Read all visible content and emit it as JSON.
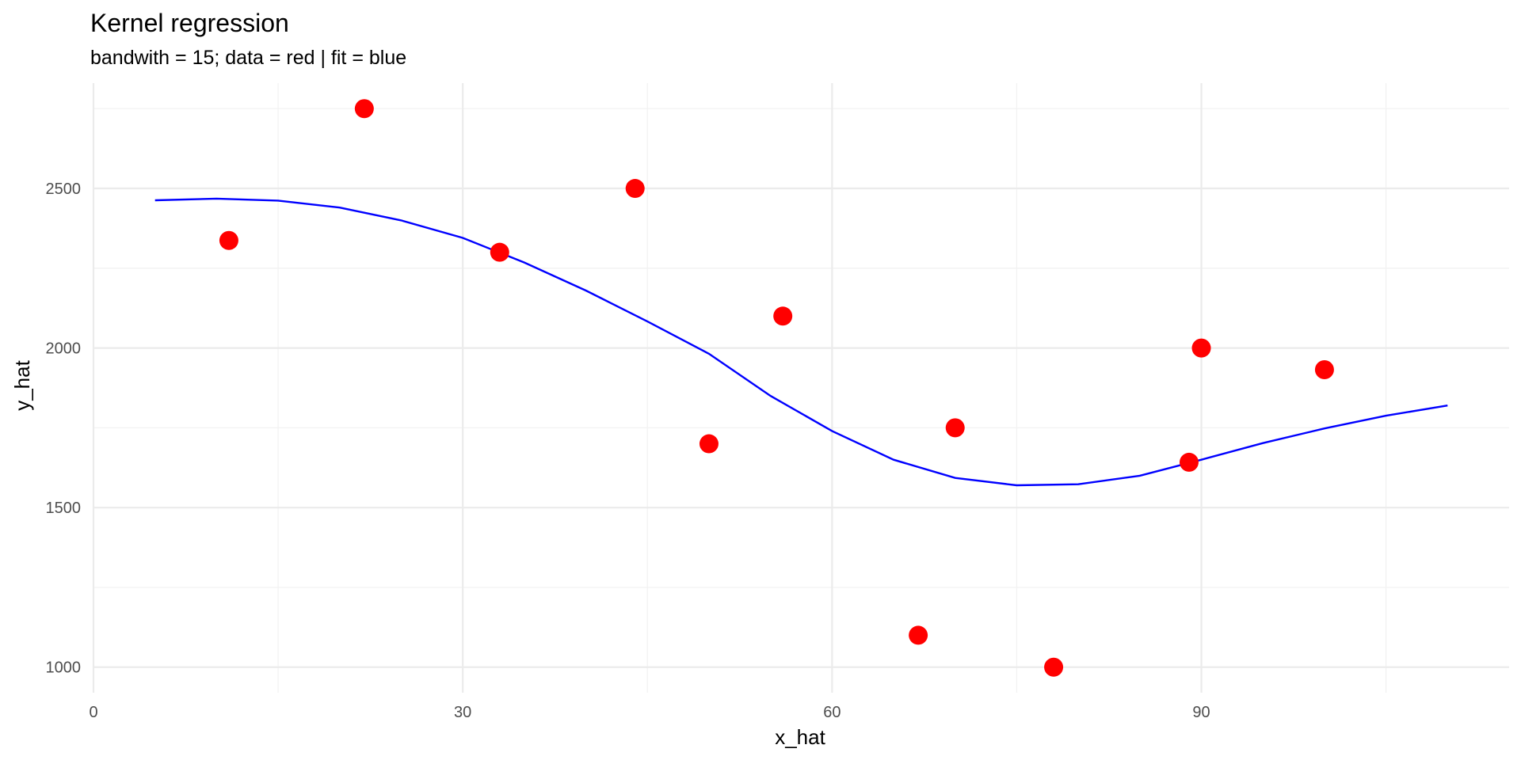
{
  "chart_data": {
    "type": "scatter",
    "title": "Kernel regression",
    "subtitle": "bandwith = 15; data = red | fit = blue",
    "xlabel": "x_hat",
    "ylabel": "y_hat",
    "xlim": [
      0,
      115
    ],
    "ylim": [
      920,
      2830
    ],
    "x_ticks": [
      0,
      30,
      60,
      90
    ],
    "y_ticks": [
      1000,
      1500,
      2000,
      2500
    ],
    "x_minor": [
      15,
      45,
      75,
      105
    ],
    "y_minor": [
      1250,
      1750,
      2250,
      2750
    ],
    "grid": true,
    "legend": "none",
    "colors": {
      "data": "#ff0000",
      "fit": "#0000ff"
    },
    "points": {
      "x": [
        11,
        22,
        33,
        44,
        50,
        56,
        67,
        70,
        78,
        89,
        90,
        100
      ],
      "y": [
        2337,
        2750,
        2300,
        2500,
        1700,
        2100,
        1100,
        1750,
        1000,
        1642,
        2000,
        1932
      ]
    },
    "fit": {
      "x": [
        5,
        10,
        15,
        20,
        25,
        30,
        35,
        40,
        45,
        50,
        55,
        60,
        65,
        70,
        75,
        80,
        85,
        90,
        95,
        100,
        105,
        110
      ],
      "y": [
        2463,
        2468,
        2462,
        2440,
        2400,
        2345,
        2268,
        2180,
        2083,
        1982,
        1850,
        1740,
        1650,
        1593,
        1570,
        1573,
        1600,
        1650,
        1702,
        1748,
        1788,
        1820
      ]
    }
  }
}
